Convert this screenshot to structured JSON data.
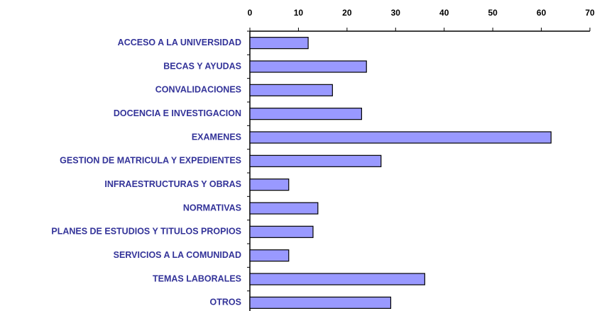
{
  "chart_data": {
    "type": "bar",
    "orientation": "horizontal",
    "categories": [
      "ACCESO A LA UNIVERSIDAD",
      "BECAS Y AYUDAS",
      "CONVALIDACIONES",
      "DOCENCIA E INVESTIGACION",
      "EXAMENES",
      "GESTION DE MATRICULA Y EXPEDIENTES",
      "INFRAESTRUCTURAS Y OBRAS",
      "NORMATIVAS",
      "PLANES DE ESTUDIOS Y TITULOS PROPIOS",
      "SERVICIOS A LA COMUNIDAD",
      "TEMAS LABORALES",
      "OTROS"
    ],
    "values": [
      12,
      24,
      17,
      23,
      62,
      27,
      8,
      14,
      13,
      8,
      36,
      29
    ],
    "color": "#9999ff",
    "xlim": [
      0,
      70
    ],
    "xticks": [
      0,
      10,
      20,
      30,
      40,
      50,
      60,
      70
    ],
    "grid": false
  }
}
